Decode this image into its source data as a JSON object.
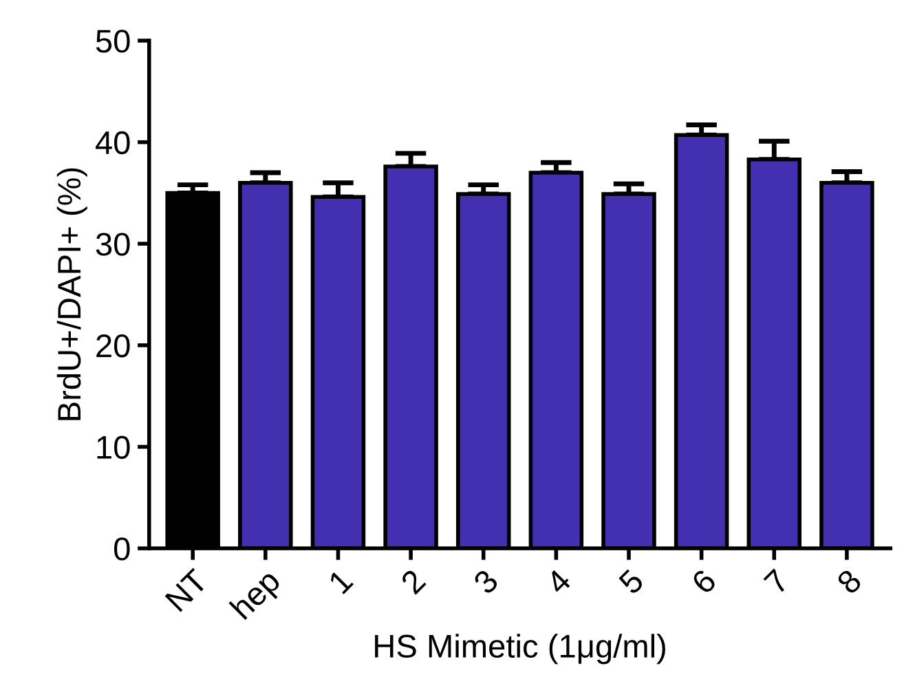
{
  "chart_data": {
    "type": "bar",
    "xlabel": "HS Mimetic (1μg/ml)",
    "ylabel": "BrdU+/DAPI+ (%)",
    "categories": [
      "NT",
      "hep",
      "1",
      "2",
      "3",
      "4",
      "5",
      "6",
      "7",
      "8"
    ],
    "values": [
      35.0,
      36.0,
      34.6,
      37.6,
      34.9,
      37.0,
      34.9,
      40.7,
      38.3,
      36.0
    ],
    "errors": [
      [
        35.0,
        35.8
      ],
      [
        36.0,
        37.0
      ],
      [
        34.6,
        36.0
      ],
      [
        37.6,
        38.9
      ],
      [
        34.9,
        35.8
      ],
      [
        37.0,
        38.0
      ],
      [
        34.9,
        35.9
      ],
      [
        40.7,
        41.7
      ],
      [
        38.3,
        40.1
      ],
      [
        36.0,
        37.1
      ]
    ],
    "colors": [
      "#000000",
      "#4330b0",
      "#4330b0",
      "#4330b0",
      "#4330b0",
      "#4330b0",
      "#4330b0",
      "#4330b0",
      "#4330b0",
      "#4330b0"
    ],
    "ylim": [
      0,
      50
    ],
    "yticks": [
      0,
      10,
      20,
      30,
      40,
      50
    ],
    "grid": false,
    "legend": false
  }
}
